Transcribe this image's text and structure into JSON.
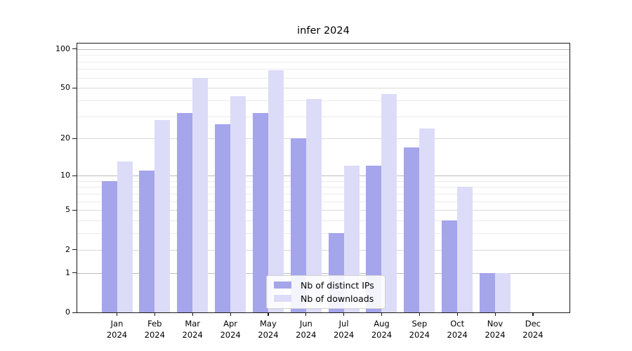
{
  "chart_data": {
    "type": "bar",
    "title": "infer 2024",
    "categories": [
      "Jan 2024",
      "Feb 2024",
      "Mar 2024",
      "Apr 2024",
      "May 2024",
      "Jun 2024",
      "Jul 2024",
      "Aug 2024",
      "Sep 2024",
      "Oct 2024",
      "Nov 2024",
      "Dec 2024"
    ],
    "series": [
      {
        "name": "Nb of distinct IPs",
        "color": "#a5a5ec",
        "values": [
          9,
          11,
          32,
          26,
          32,
          20,
          3,
          12,
          17,
          4,
          1,
          0
        ]
      },
      {
        "name": "Nb of downloads",
        "color": "#dcdcf8",
        "values": [
          13,
          28,
          60,
          43,
          69,
          41,
          12,
          45,
          24,
          8,
          1,
          0
        ]
      }
    ],
    "xlabel": "",
    "ylabel": "",
    "yscale": "log1p",
    "yticks": [
      0,
      1,
      2,
      5,
      10,
      20,
      50,
      100
    ],
    "ylim": [
      0,
      110
    ],
    "grid": true,
    "grid_lines": {
      "major": [
        1,
        10,
        100
      ],
      "mid": [
        2,
        5,
        20,
        50
      ],
      "minor": [
        3,
        4,
        6,
        7,
        8,
        9,
        30,
        40,
        60,
        70,
        80,
        90
      ]
    },
    "legend_position": "lower center"
  }
}
